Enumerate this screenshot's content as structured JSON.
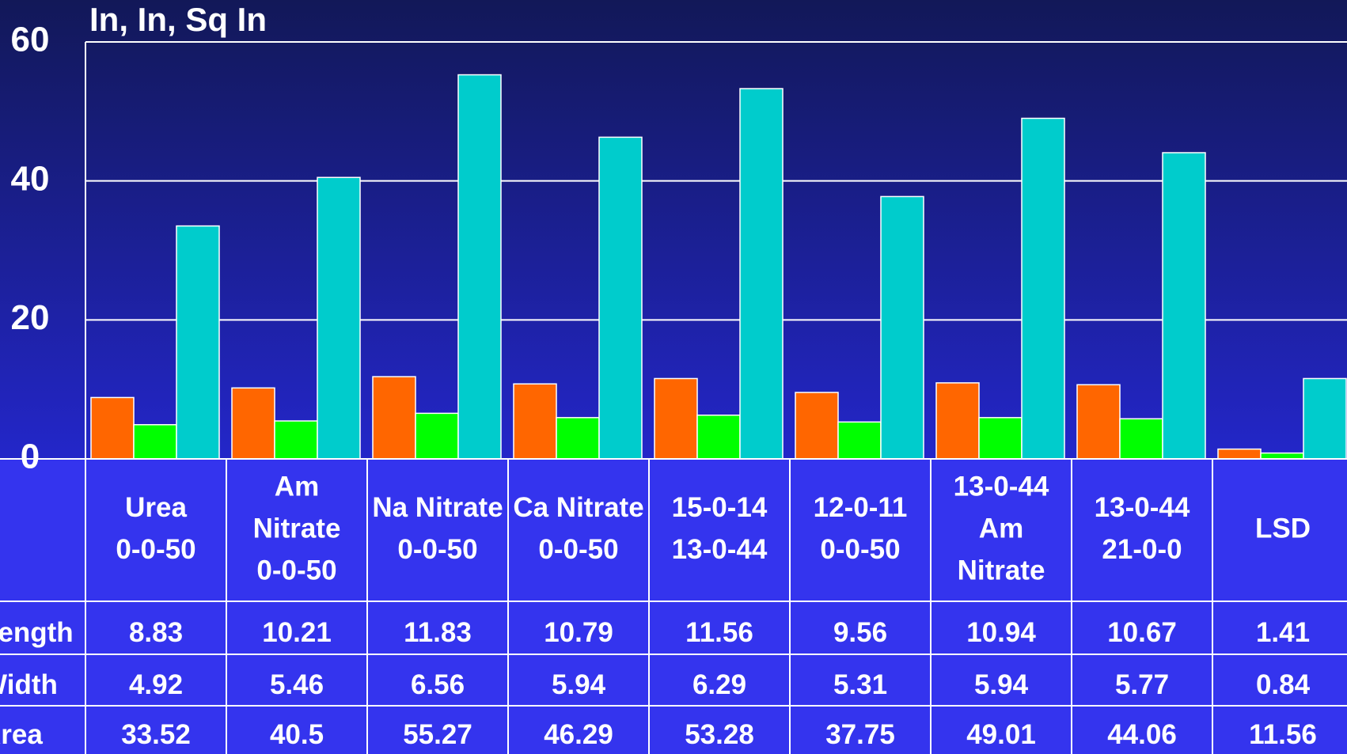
{
  "chart_data": {
    "type": "bar",
    "title": "In, In, Sq In",
    "categories": [
      [
        "Urea",
        "0-0-50"
      ],
      [
        "Am",
        "Nitrate",
        "0-0-50"
      ],
      [
        "Na Nitrate",
        "0-0-50"
      ],
      [
        "Ca Nitrate",
        "0-0-50"
      ],
      [
        "15-0-14",
        "13-0-44"
      ],
      [
        "12-0-11",
        "0-0-50"
      ],
      [
        "13-0-44",
        "Am",
        "Nitrate"
      ],
      [
        "13-0-44",
        "21-0-0"
      ],
      [
        "LSD"
      ]
    ],
    "series": [
      {
        "name": "Length",
        "color": "#ff6600",
        "values": [
          8.83,
          10.21,
          11.83,
          10.79,
          11.56,
          9.56,
          10.94,
          10.67,
          1.41
        ]
      },
      {
        "name": "Width",
        "color": "#00ff00",
        "values": [
          4.92,
          5.46,
          6.56,
          5.94,
          6.29,
          5.31,
          5.94,
          5.77,
          0.84
        ]
      },
      {
        "name": "Area",
        "color": "#00cccc",
        "values": [
          33.52,
          40.5,
          55.27,
          46.29,
          53.28,
          37.75,
          49.01,
          44.06,
          11.56
        ]
      }
    ],
    "ylim": [
      0,
      60
    ],
    "yticks": [
      0,
      20,
      40,
      60
    ],
    "grid": true
  }
}
